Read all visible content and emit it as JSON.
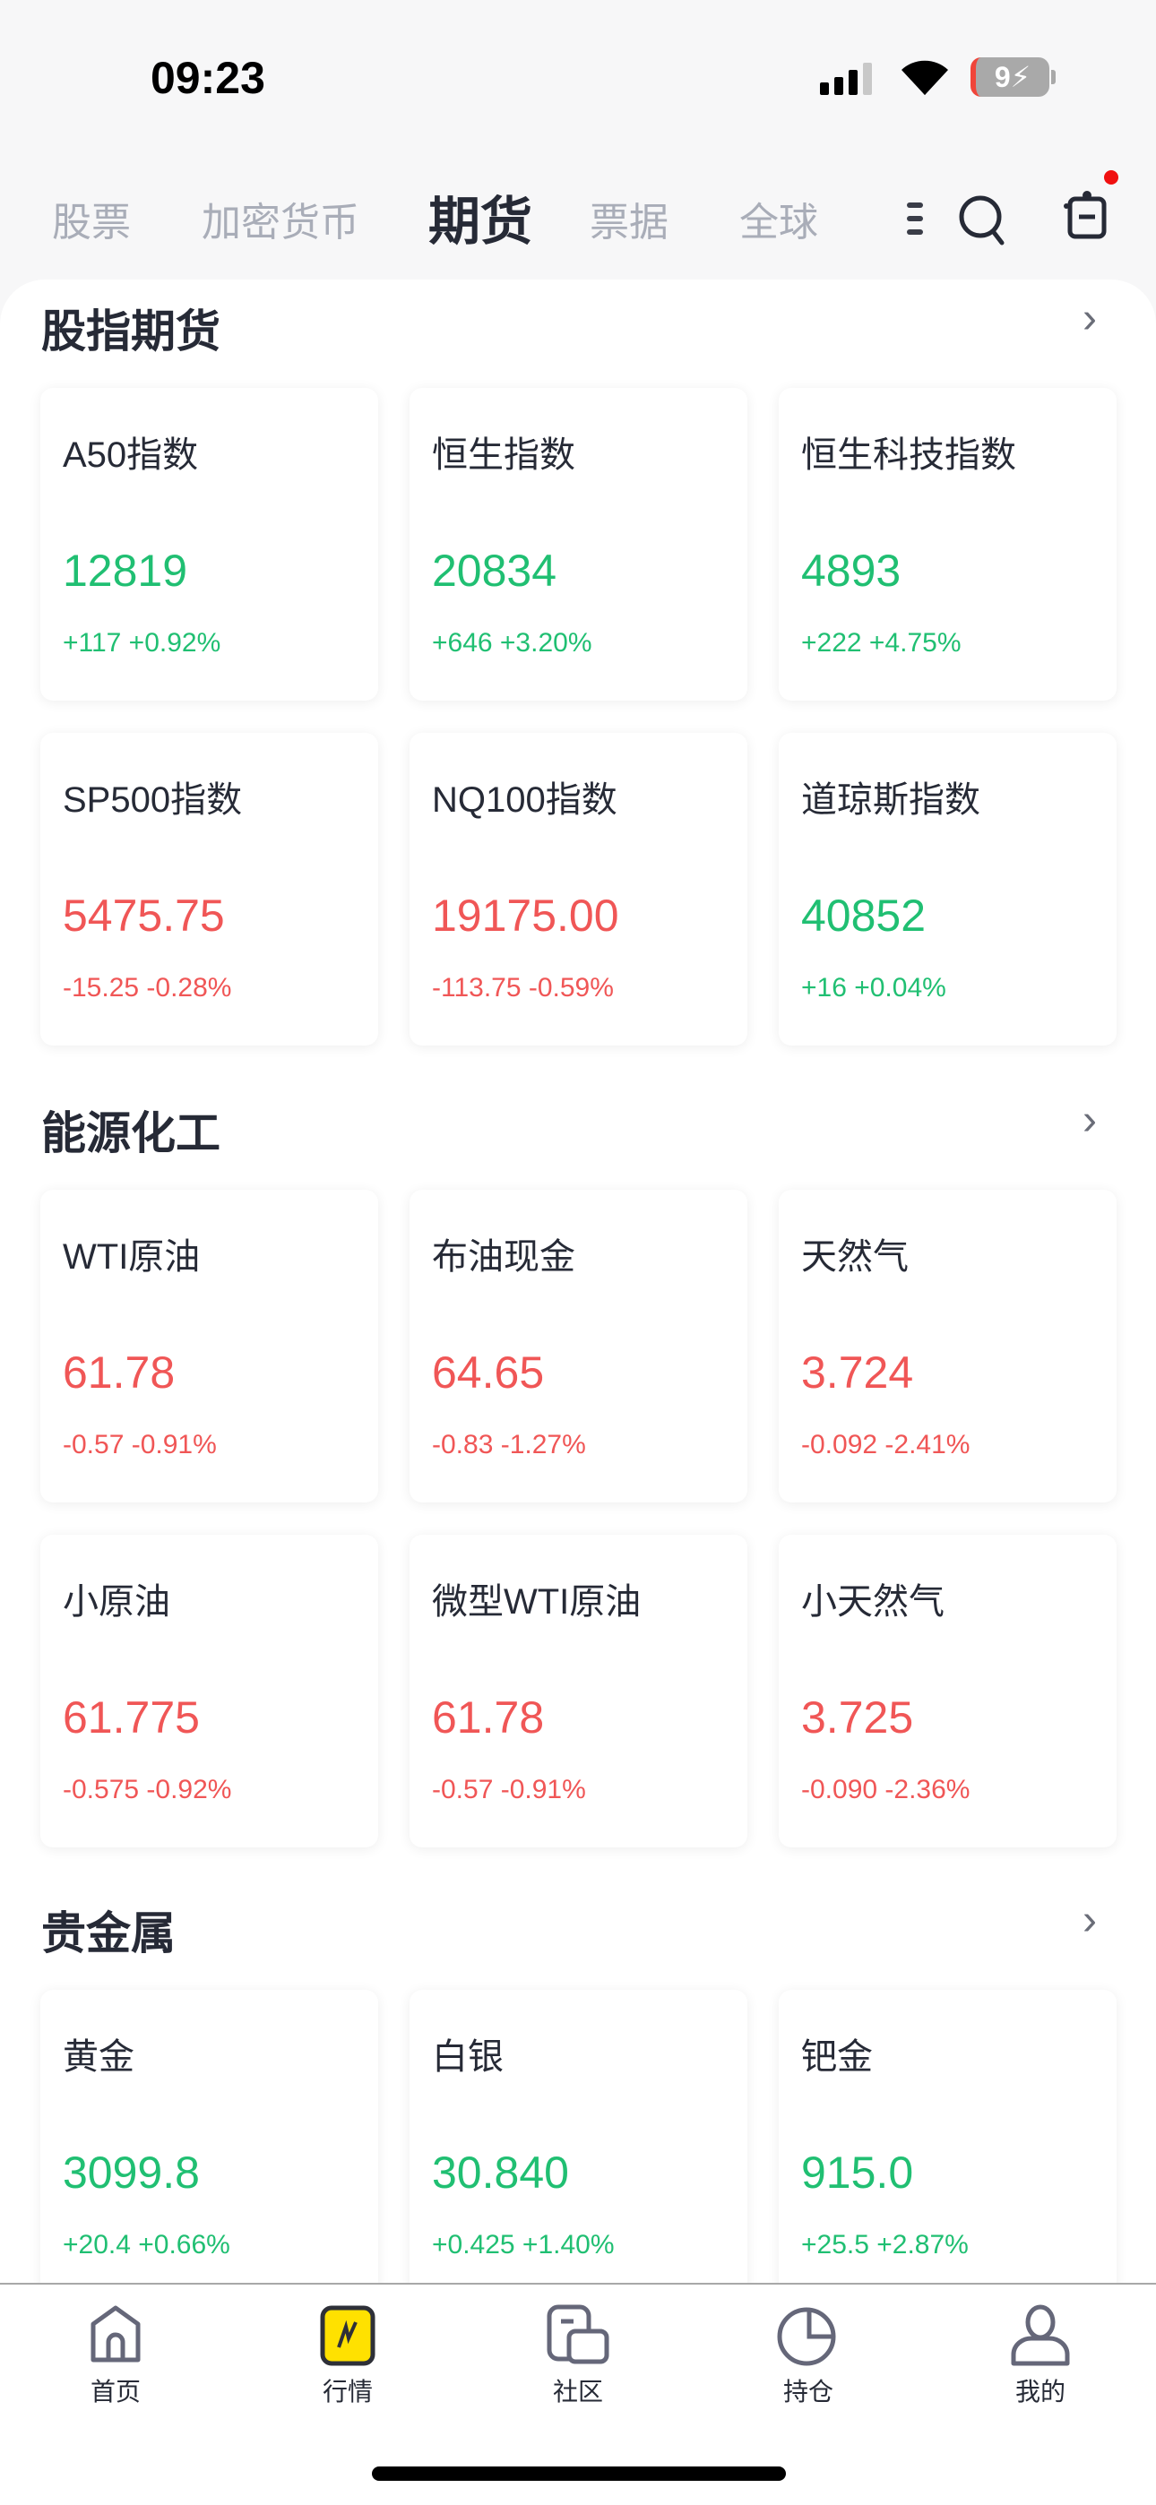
{
  "status_bar": {
    "time": "09:23",
    "battery": "9"
  },
  "tabs": [
    {
      "label": "股票"
    },
    {
      "label": "加密货币"
    },
    {
      "label": "期货",
      "active": true
    },
    {
      "label": "票据"
    },
    {
      "label": "全球"
    }
  ],
  "header_icons": [
    "menu-icon",
    "search-icon",
    "robot-icon"
  ],
  "colors": {
    "up": "#20bf72",
    "down": "#f05656",
    "accent": "#ffe100"
  },
  "sections": [
    {
      "title": "股指期货",
      "items": [
        {
          "name": "A50指数",
          "price": "12819",
          "change": "+117 +0.92%",
          "dir": "up"
        },
        {
          "name": "恒生指数",
          "price": "20834",
          "change": "+646 +3.20%",
          "dir": "up"
        },
        {
          "name": "恒生科技指数",
          "price": "4893",
          "change": "+222 +4.75%",
          "dir": "up"
        },
        {
          "name": "SP500指数",
          "price": "5475.75",
          "change": "-15.25 -0.28%",
          "dir": "down"
        },
        {
          "name": "NQ100指数",
          "price": "19175.00",
          "change": "-113.75 -0.59%",
          "dir": "down"
        },
        {
          "name": "道琼斯指数",
          "price": "40852",
          "change": "+16 +0.04%",
          "dir": "up"
        }
      ]
    },
    {
      "title": "能源化工",
      "items": [
        {
          "name": "WTI原油",
          "price": "61.78",
          "change": "-0.57 -0.91%",
          "dir": "down"
        },
        {
          "name": "布油现金",
          "price": "64.65",
          "change": "-0.83 -1.27%",
          "dir": "down"
        },
        {
          "name": "天然气",
          "price": "3.724",
          "change": "-0.092 -2.41%",
          "dir": "down"
        },
        {
          "name": "小原油",
          "price": "61.775",
          "change": "-0.575 -0.92%",
          "dir": "down"
        },
        {
          "name": "微型WTI原油",
          "price": "61.78",
          "change": "-0.57 -0.91%",
          "dir": "down"
        },
        {
          "name": "小天然气",
          "price": "3.725",
          "change": "-0.090 -2.36%",
          "dir": "down"
        }
      ]
    },
    {
      "title": "贵金属",
      "items": [
        {
          "name": "黄金",
          "price": "3099.8",
          "change": "+20.4 +0.66%",
          "dir": "up"
        },
        {
          "name": "白银",
          "price": "30.840",
          "change": "+0.425 +1.40%",
          "dir": "up"
        },
        {
          "name": "钯金",
          "price": "915.0",
          "change": "+25.5 +2.87%",
          "dir": "up"
        }
      ]
    }
  ],
  "bottom_nav": [
    {
      "label": "首页"
    },
    {
      "label": "行情",
      "active": true
    },
    {
      "label": "社区"
    },
    {
      "label": "持仓"
    },
    {
      "label": "我的"
    }
  ]
}
